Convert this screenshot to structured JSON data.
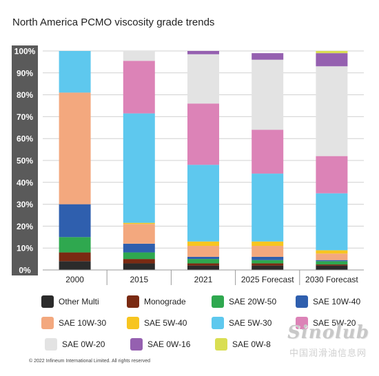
{
  "title": "North America PCMO viscosity grade trends",
  "copyright": "© 2022 Infineum International Limited. All rights reserved",
  "watermark": {
    "logo": "Sinolub",
    "subtitle": "中国润滑油信息网"
  },
  "colors": {
    "Other Multi": "#2b2b2b",
    "Monograde": "#7a2a12",
    "SAE 20W-50": "#2fa84f",
    "SAE 10W-40": "#2f5fae",
    "SAE 10W-30": "#f3a87e",
    "SAE 5W-40": "#f7c520",
    "SAE 5W-30": "#5ec8ee",
    "SAE 5W-20": "#dc83b7",
    "SAE 0W-20": "#e3e3e3",
    "SAE 0W-16": "#9560b0",
    "SAE 0W-8": "#d9de52",
    "axis_band": "#5a5a5a",
    "gridline": "#d0d0d0"
  },
  "chart_data": {
    "type": "bar",
    "stacked": true,
    "title": "North America PCMO viscosity grade trends",
    "categories": [
      "2000",
      "2015",
      "2021",
      "2025 Forecast",
      "2030 Forecast"
    ],
    "ylim": [
      0,
      100
    ],
    "yticks": [
      "0%",
      "10%",
      "20%",
      "30%",
      "40%",
      "50%",
      "60%",
      "70%",
      "80%",
      "90%",
      "100%"
    ],
    "grid": true,
    "legend_position": "bottom",
    "series": [
      {
        "name": "Other Multi",
        "values": [
          4,
          3,
          2,
          2,
          2
        ]
      },
      {
        "name": "Monograde",
        "values": [
          4,
          2,
          1,
          1,
          0.5
        ]
      },
      {
        "name": "SAE 20W-50",
        "values": [
          7,
          3,
          2,
          1.5,
          1.5
        ]
      },
      {
        "name": "SAE 10W-40",
        "values": [
          15,
          4,
          1,
          1.5,
          0.5
        ]
      },
      {
        "name": "SAE 10W-30",
        "values": [
          51,
          9,
          5,
          5,
          3
        ]
      },
      {
        "name": "SAE 5W-40",
        "values": [
          0,
          0.5,
          2,
          2,
          1.5
        ]
      },
      {
        "name": "SAE 5W-30",
        "values": [
          19,
          50,
          35,
          31,
          26
        ]
      },
      {
        "name": "SAE 5W-20",
        "values": [
          0,
          24,
          28,
          20,
          17
        ]
      },
      {
        "name": "SAE 0W-20",
        "values": [
          0,
          4.5,
          22.5,
          32,
          41
        ]
      },
      {
        "name": "SAE 0W-16",
        "values": [
          0,
          0,
          1.5,
          3,
          6
        ]
      },
      {
        "name": "SAE 0W-8",
        "values": [
          0,
          0,
          0,
          0,
          1
        ]
      }
    ]
  },
  "legend": [
    "Other Multi",
    "Monograde",
    "SAE 20W-50",
    "SAE 10W-40",
    "SAE 10W-30",
    "SAE 5W-40",
    "SAE 5W-30",
    "SAE 5W-20",
    "SAE 0W-20",
    "SAE 0W-16",
    "SAE 0W-8"
  ]
}
